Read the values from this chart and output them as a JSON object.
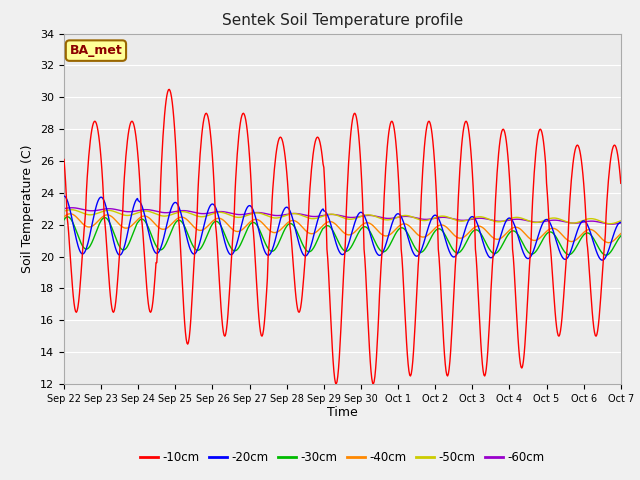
{
  "title": "Sentek Soil Temperature profile",
  "xlabel": "Time",
  "ylabel": "Soil Temperature (C)",
  "ylim": [
    12,
    34
  ],
  "yticks": [
    12,
    14,
    16,
    18,
    20,
    22,
    24,
    26,
    28,
    30,
    32,
    34
  ],
  "fig_facecolor": "#f0f0f0",
  "plot_bg_color": "#ebebeb",
  "annotation_text": "BA_met",
  "annotation_bg": "#ffff99",
  "annotation_border": "#996600",
  "legend_entries": [
    "-10cm",
    "-20cm",
    "-30cm",
    "-40cm",
    "-50cm",
    "-60cm"
  ],
  "line_colors": [
    "#ff0000",
    "#0000ff",
    "#00bb00",
    "#ff8800",
    "#cccc00",
    "#9900cc"
  ],
  "x_tick_labels": [
    "Sep 22",
    "Sep 23",
    "Sep 24",
    "Sep 25",
    "Sep 26",
    "Sep 27",
    "Sep 28",
    "Sep 29",
    "Sep 30",
    "Oct 1",
    "Oct 2",
    "Oct 3",
    "Oct 4",
    "Oct 5",
    "Oct 6",
    "Oct 7"
  ],
  "n_points": 721
}
